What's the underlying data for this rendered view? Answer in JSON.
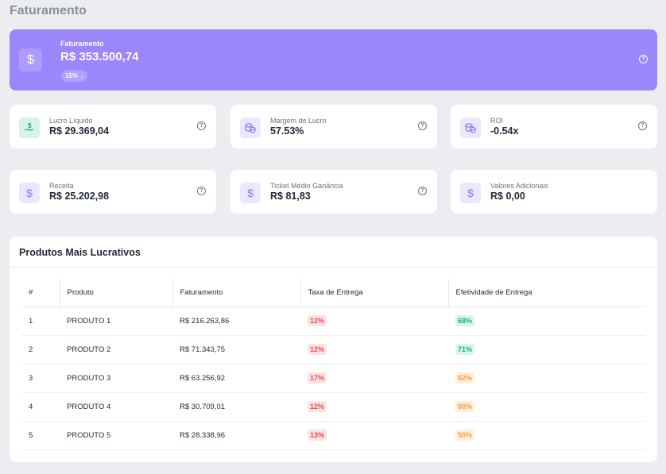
{
  "page": {
    "title": "Faturamento"
  },
  "hero": {
    "label": "Faturamento",
    "value": "R$ 353.500,74",
    "badge": "15%",
    "badge_icon": "arrow-down-icon",
    "icon": "dollar-icon"
  },
  "cards": [
    {
      "label": "Lucro Líquido",
      "value": "R$ 29.369,04",
      "icon": "money-hand-icon",
      "has_help": true
    },
    {
      "label": "Margem de Lucro",
      "value": "57.53%",
      "icon": "coins-icon",
      "has_help": true
    },
    {
      "label": "ROI",
      "value": "-0.54x",
      "icon": "coins-icon",
      "has_help": true
    },
    {
      "label": "Receita",
      "value": "R$ 25.202,98",
      "icon": "dollar-icon",
      "has_help": true
    },
    {
      "label": "Ticket Médio Ganância",
      "value": "R$ 81,83",
      "icon": "dollar-icon",
      "has_help": true
    },
    {
      "label": "Valores Adicionais",
      "value": "R$ 0,00",
      "icon": "dollar-icon",
      "has_help": false
    }
  ],
  "products": {
    "title": "Produtos Mais Lucrativos",
    "columns": [
      "#",
      "Produto",
      "Faturamento",
      "Taxa de Entrega",
      "Efetividade de Entrega"
    ],
    "rows": [
      {
        "num": "1",
        "product": "PRODUTO 1",
        "revenue": "R$ 216.263,86",
        "rate": "12%",
        "effectiveness": "68%"
      },
      {
        "num": "2",
        "product": "PRODUTO 2",
        "revenue": "R$ 71.343,75",
        "rate": "12%",
        "effectiveness": "71%"
      },
      {
        "num": "3",
        "product": "PRODUTO 3",
        "revenue": "R$ 63.256,92",
        "rate": "17%",
        "effectiveness": "62%"
      },
      {
        "num": "4",
        "product": "PRODUTO 4",
        "revenue": "R$ 30.709,01",
        "rate": "12%",
        "effectiveness": "60%"
      },
      {
        "num": "5",
        "product": "PRODUTO 5",
        "revenue": "R$ 28.338,96",
        "rate": "13%",
        "effectiveness": "50%"
      }
    ]
  },
  "colors": {
    "hero": "#9b87fb",
    "background": "#ecedf1",
    "danger": "#e0525c",
    "success": "#1fae7e",
    "warning": "#f4a04a"
  }
}
